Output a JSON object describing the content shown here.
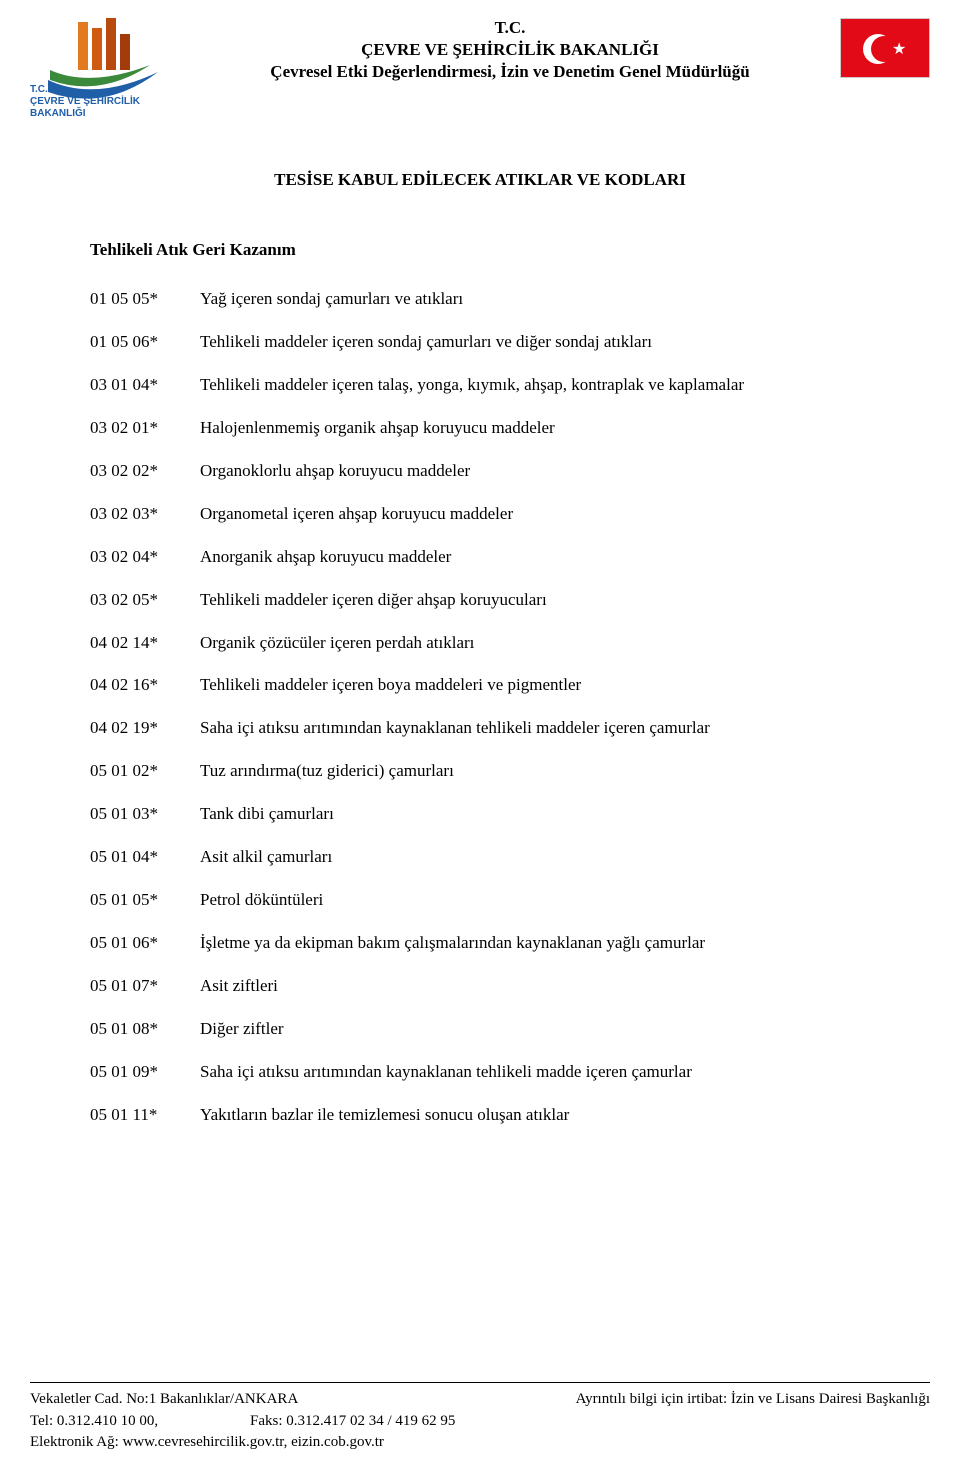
{
  "header": {
    "line1": "T.C.",
    "line2": "ÇEVRE VE ŞEHİRCİLİK BAKANLIĞI",
    "line3": "Çevresel Etki Değerlendirmesi, İzin ve Denetim Genel Müdürlüğü",
    "logo_left_top": "T.C.",
    "logo_left_mid": "ÇEVRE VE ŞEHİRCİLİK",
    "logo_left_bot": "BAKANLIĞI"
  },
  "section": {
    "title": "TESİSE KABUL EDİLECEK ATIKLAR VE KODLARI",
    "subtitle": "Tehlikeli Atık Geri Kazanım"
  },
  "rows": [
    {
      "code": "01 05 05*",
      "desc": "Yağ içeren sondaj çamurları ve atıkları"
    },
    {
      "code": "01 05 06*",
      "desc": "Tehlikeli maddeler içeren sondaj çamurları ve diğer sondaj atıkları"
    },
    {
      "code": "03 01 04*",
      "desc": "Tehlikeli maddeler içeren talaş, yonga, kıymık, ahşap, kontraplak ve kaplamalar"
    },
    {
      "code": "03 02 01*",
      "desc": "Halojenlenmemiş organik ahşap koruyucu maddeler"
    },
    {
      "code": "03 02 02*",
      "desc": "Organoklorlu ahşap koruyucu maddeler"
    },
    {
      "code": "03 02 03*",
      "desc": "Organometal içeren ahşap koruyucu maddeler"
    },
    {
      "code": "03 02 04*",
      "desc": "Anorganik ahşap koruyucu maddeler"
    },
    {
      "code": "03 02 05*",
      "desc": "Tehlikeli maddeler içeren diğer ahşap koruyucuları"
    },
    {
      "code": "04 02 14*",
      "desc": "Organik çözücüler içeren perdah atıkları"
    },
    {
      "code": "04 02 16*",
      "desc": "Tehlikeli maddeler içeren boya maddeleri ve pigmentler"
    },
    {
      "code": "04 02 19*",
      "desc": "Saha içi atıksu arıtımından kaynaklanan tehlikeli maddeler içeren çamurlar"
    },
    {
      "code": "05 01 02*",
      "desc": "Tuz arındırma(tuz giderici) çamurları"
    },
    {
      "code": "05 01 03*",
      "desc": "Tank dibi çamurları"
    },
    {
      "code": "05 01 04*",
      "desc": "Asit alkil çamurları"
    },
    {
      "code": "05 01 05*",
      "desc": "Petrol döküntüleri"
    },
    {
      "code": "05 01 06*",
      "desc": "İşletme ya da ekipman bakım çalışmalarından kaynaklanan yağlı çamurlar"
    },
    {
      "code": "05 01 07*",
      "desc": "Asit ziftleri"
    },
    {
      "code": "05 01 08*",
      "desc": "Diğer ziftler"
    },
    {
      "code": "05 01 09*",
      "desc": "Saha içi atıksu arıtımından kaynaklanan tehlikeli madde içeren çamurlar"
    },
    {
      "code": "05 01 11*",
      "desc": "Yakıtların bazlar ile temizlemesi sonucu oluşan atıklar"
    }
  ],
  "footer": {
    "addr": "Vekaletler Cad. No:1 Bakanlıklar/ANKARA",
    "contact": "Ayrıntılı bilgi için irtibat: İzin ve Lisans Dairesi Başkanlığı",
    "tel": "Tel: 0.312.410 10 00,",
    "faks": "Faks: 0.312.417 02 34 / 419 62 95",
    "web": "Elektronik Ağ: www.cevresehircilik.gov.tr, eizin.cob.gov.tr"
  }
}
